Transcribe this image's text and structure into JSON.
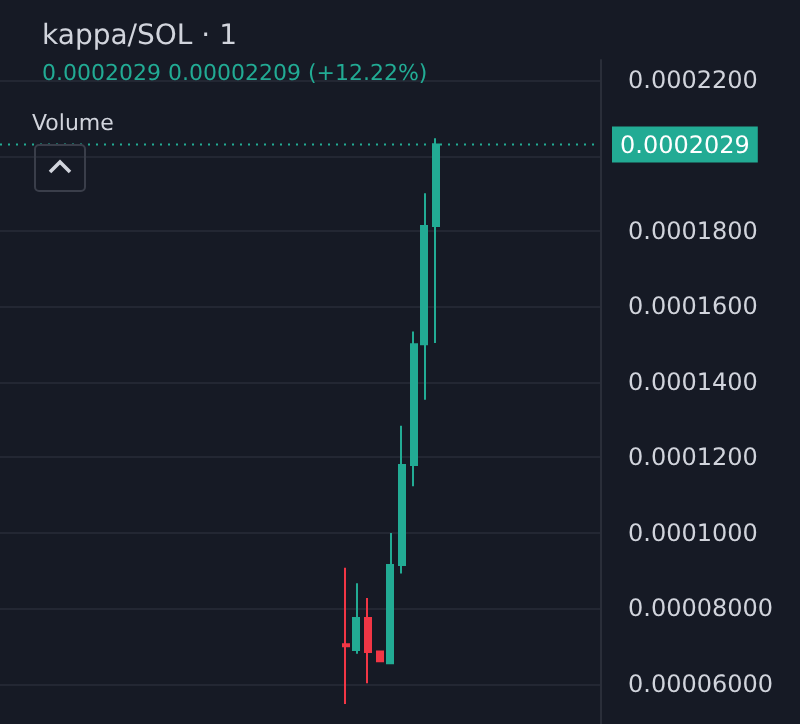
{
  "chart_data": {
    "type": "candlestick",
    "title": "kappa/SOL · 1",
    "subtitle": "0.0002029 0.00002209 (+12.22%)",
    "annotations": [
      "Volume"
    ],
    "categories": [
      null,
      null,
      null,
      null,
      null,
      null,
      null,
      null,
      null,
      null,
      null,
      null,
      null,
      null,
      null,
      null,
      null,
      null,
      null,
      null,
      null,
      null,
      null,
      null,
      null,
      null,
      null,
      null,
      null,
      null,
      null,
      null,
      null,
      null,
      null,
      null,
      null,
      null,
      null,
      null,
      null,
      null,
      null,
      null,
      null,
      null,
      null,
      null,
      null,
      null,
      null,
      null,
      null
    ],
    "ohlc": [
      null,
      null,
      null,
      null,
      null,
      null,
      null,
      null,
      null,
      null,
      null,
      null,
      null,
      null,
      null,
      null,
      null,
      null,
      null,
      null,
      null,
      null,
      null,
      null,
      null,
      null,
      null,
      null,
      null,
      null,
      [
        7.05e-05,
        9.08e-05,
        5.47e-05,
        7e-05
      ],
      [
        6.9e-05,
        8.67e-05,
        6.8e-05,
        7.75e-05
      ],
      [
        7.75e-05,
        8.28e-05,
        6.02e-05,
        6.85e-05
      ],
      [
        6.86e-05,
        6.86e-05,
        6.6e-05,
        6.6e-05
      ],
      [
        6.55e-05,
        0.0001,
        6.55e-05,
        9.15e-05
      ],
      [
        9.15e-05,
        0.0001284,
        8.93e-05,
        0.000118
      ],
      [
        0.000118,
        0.0001534,
        0.0001124,
        0.00015
      ],
      [
        0.00015,
        0.00019,
        0.0001353,
        0.0001813
      ],
      [
        0.0001813,
        0.0002046,
        0.0001503,
        0.0002029
      ],
      null,
      null,
      null,
      null,
      null,
      null,
      null,
      null,
      null,
      null,
      null,
      null,
      null,
      null
    ],
    "colors": [
      null,
      null,
      null,
      null,
      null,
      null,
      null,
      null,
      null,
      null,
      null,
      null,
      null,
      null,
      null,
      null,
      null,
      null,
      null,
      null,
      null,
      null,
      null,
      null,
      null,
      null,
      null,
      null,
      null,
      null,
      "#f23645",
      "#22ab94",
      "#f23645",
      "#f23645",
      "#22ab94",
      "#22ab94",
      "#22ab94",
      "#22ab94",
      "#22ab94",
      null,
      null,
      null,
      null,
      null,
      null,
      null,
      null,
      null,
      null,
      null,
      null,
      null,
      null
    ],
    "ylim": [
      4.94e-05,
      0.0002253
    ],
    "yticks": [
      {
        "value": 6e-05,
        "label": "0.00006000"
      },
      {
        "value": 8e-05,
        "label": "0.00008000"
      },
      {
        "value": 0.0001,
        "label": "0.0001000"
      },
      {
        "value": 0.00012,
        "label": "0.0001200"
      },
      {
        "value": 0.00014,
        "label": "0.0001400"
      },
      {
        "value": 0.00016,
        "label": "0.0001600"
      },
      {
        "value": 0.00018,
        "label": "0.0001800"
      },
      {
        "value": 0.0002,
        "label": null
      },
      {
        "value": 0.00022,
        "label": "0.0002200"
      }
    ],
    "grid": "y",
    "tick_labels": "y",
    "ref_lines": [
      {
        "axis": "y",
        "value": 0.0002029,
        "label": "0.0002029",
        "color": "#22ab94",
        "line_style": "dotted"
      }
    ]
  }
}
